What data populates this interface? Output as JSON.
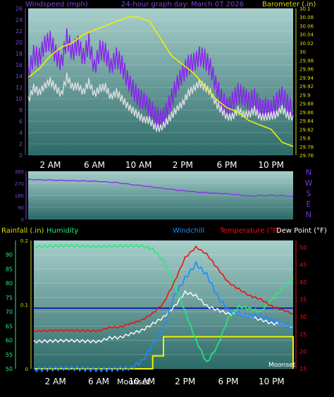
{
  "chart_data": [
    {
      "type": "line",
      "title": "24-hour graph day:  March 07 2026",
      "ylabel_left": "Windspeed (mph)",
      "ylabel_right": "Barometer (.in)",
      "ylim_left": [
        0,
        26
      ],
      "ylim_right": [
        29.76,
        30.1
      ],
      "yticks_left": [
        "0",
        "2",
        "4",
        "6",
        "8",
        "10",
        "12",
        "14",
        "16",
        "18",
        "20",
        "22",
        "24",
        "26"
      ],
      "yticks_right": [
        "29.76",
        "29.78",
        "29.8",
        "29.82",
        "29.84",
        "29.86",
        "29.88",
        "29.9",
        "29.92",
        "29.94",
        "29.96",
        "29.98",
        "30",
        "30.02",
        "30.04",
        "30.06",
        "30.08",
        "30.1"
      ],
      "x_ticks": [
        "2 AM",
        "6 AM",
        "10 AM",
        "2 PM",
        "6 PM",
        "10 PM"
      ],
      "x_hours": [
        0,
        24
      ],
      "colors": {
        "gust": "#8822ee",
        "avg": "#dddddd",
        "barometer": "#f0f000"
      },
      "series": [
        {
          "key": "gust",
          "x": [
            0,
            0.5,
            1,
            1.5,
            2,
            2.5,
            3,
            3.5,
            4,
            4.5,
            5,
            5.5,
            6,
            6.5,
            7,
            7.5,
            8,
            8.5,
            9,
            9.5,
            10,
            10.5,
            11,
            11.5,
            12,
            12.5,
            13,
            13.5,
            14,
            14.5,
            15,
            15.5,
            16,
            16.5,
            17,
            17.5,
            18,
            18.5,
            19,
            19.5,
            20,
            20.5,
            21,
            21.5,
            22,
            22.5,
            23,
            23.5,
            24
          ],
          "values": [
            15,
            18,
            17,
            19,
            20,
            18,
            17,
            21,
            18,
            19,
            17,
            20,
            16,
            19,
            18,
            15,
            17,
            16,
            14,
            12,
            10,
            9,
            8,
            7,
            7,
            8,
            10,
            12,
            14,
            16,
            17,
            18,
            17,
            15,
            12,
            10,
            9,
            10,
            11,
            10,
            9,
            10,
            9,
            9,
            8,
            9,
            10,
            9,
            8
          ]
        },
        {
          "key": "avg",
          "x": [
            0,
            0.5,
            1,
            1.5,
            2,
            2.5,
            3,
            3.5,
            4,
            4.5,
            5,
            5.5,
            6,
            6.5,
            7,
            7.5,
            8,
            8.5,
            9,
            9.5,
            10,
            10.5,
            11,
            11.5,
            12,
            12.5,
            13,
            13.5,
            14,
            14.5,
            15,
            15.5,
            16,
            16.5,
            17,
            17.5,
            18,
            18.5,
            19,
            19.5,
            20,
            20.5,
            21,
            21.5,
            22,
            22.5,
            23,
            23.5,
            24
          ],
          "values": [
            10,
            12,
            11,
            12,
            13,
            12,
            11,
            14,
            12,
            12,
            11,
            13,
            11,
            12,
            12,
            10,
            11,
            10,
            9,
            8,
            7,
            6,
            6,
            5,
            5,
            6,
            7,
            8,
            9,
            11,
            12,
            13,
            12,
            11,
            9,
            8,
            7,
            7,
            8,
            7,
            7,
            8,
            7,
            7,
            7,
            7,
            8,
            7,
            7
          ]
        },
        {
          "key": "barometer",
          "x": [
            0,
            1,
            2,
            3,
            4,
            5,
            6,
            7,
            8,
            9,
            10,
            11,
            12,
            13,
            14,
            15,
            16,
            17,
            18,
            19,
            20,
            21,
            22,
            23,
            24
          ],
          "values": [
            29.94,
            29.96,
            29.99,
            30.01,
            30.02,
            30.04,
            30.05,
            30.06,
            30.07,
            30.08,
            30.08,
            30.07,
            30.03,
            29.99,
            29.97,
            29.95,
            29.92,
            29.89,
            29.87,
            29.86,
            29.84,
            29.83,
            29.82,
            29.79,
            29.78
          ]
        }
      ]
    },
    {
      "type": "line",
      "ylim": [
        0,
        360
      ],
      "yticks": [
        "0",
        "90",
        "180",
        "270",
        "360"
      ],
      "compass_labels": [
        "N",
        "W",
        "S",
        "E",
        "N"
      ],
      "color": "#8833ee",
      "x": [
        0,
        2,
        4,
        6,
        8,
        10,
        12,
        14,
        16,
        18,
        20,
        22,
        24
      ],
      "values": [
        300,
        295,
        290,
        285,
        275,
        255,
        235,
        215,
        200,
        190,
        175,
        180,
        175
      ]
    },
    {
      "type": "line",
      "legend": {
        "rainfall": "Rainfall (.in)",
        "humidity": "Humidity",
        "windchill": "Windchill",
        "temperature": "Temperature (°F)",
        "dewpoint": "Dew Point (°F)"
      },
      "yticks_left": [
        "50",
        "55",
        "60",
        "65",
        "70",
        "75",
        "80",
        "85",
        "90"
      ],
      "ylim_left": [
        50,
        95
      ],
      "yticks_right": [
        "15",
        "20",
        "25",
        "30",
        "35",
        "40",
        "45",
        "50"
      ],
      "ylim_right": [
        15,
        52
      ],
      "rain_ticks": [
        "0",
        "0.1",
        "0.2"
      ],
      "x_ticks": [
        "2 AM",
        "6 AM",
        "10 AM",
        "2 PM",
        "6 PM",
        "10 PM"
      ],
      "annotations": {
        "moonset": "Moonset",
        "sunset_label": "10 AM"
      },
      "colors": {
        "humidity": "#22ee77",
        "windchill": "#2288ff",
        "temperature": "#ee1111",
        "dewpoint": "#ffffff",
        "rain": "#f0f000",
        "rainline": "#0000aa"
      },
      "x": [
        0,
        1,
        2,
        3,
        4,
        5,
        6,
        7,
        8,
        9,
        10,
        11,
        12,
        13,
        14,
        15,
        16,
        17,
        18,
        19,
        20,
        21,
        22,
        23,
        24
      ],
      "humidity": [
        93,
        93,
        93,
        93,
        93,
        93,
        93,
        93,
        93,
        93,
        93,
        92,
        88,
        80,
        70,
        60,
        52,
        58,
        68,
        72,
        71,
        70,
        74,
        78,
        82
      ],
      "temperature": [
        26,
        26,
        26,
        26,
        26,
        26,
        26,
        27,
        27,
        28,
        29,
        31,
        34,
        40,
        47,
        50,
        48,
        44,
        40,
        38,
        36,
        35,
        33,
        32,
        31
      ],
      "windchill": [
        15,
        15,
        15,
        15,
        15,
        15,
        15,
        15,
        15,
        15,
        17,
        22,
        27,
        36,
        41,
        45,
        42,
        36,
        32,
        31,
        30,
        30,
        29,
        28,
        27
      ],
      "dewpoint": [
        23,
        23,
        23,
        23,
        23,
        23,
        23,
        24,
        24,
        25,
        26,
        28,
        30,
        33,
        37,
        36,
        33,
        32,
        31,
        31,
        30,
        29,
        28,
        28,
        27
      ],
      "rain": [
        0,
        0,
        0,
        0,
        0,
        0,
        0,
        0,
        0,
        0,
        0,
        0.02,
        0.05,
        0.05,
        0.05,
        0.05,
        0.05,
        0.05,
        0.05,
        0.05,
        0.05,
        0.05,
        0.05,
        0.05,
        0
      ]
    }
  ]
}
